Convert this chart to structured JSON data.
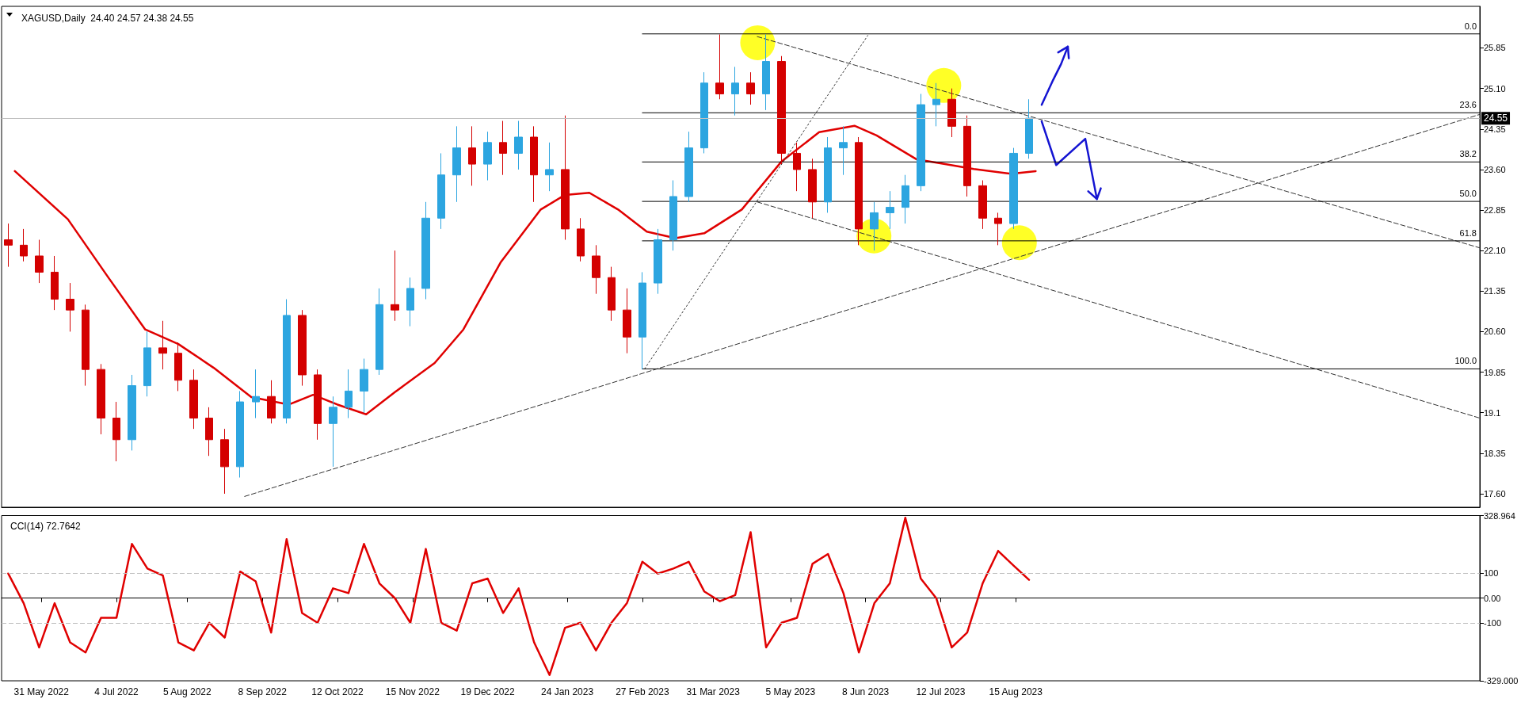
{
  "chart_data": [
    {
      "type": "candlestick",
      "title": "XAGUSD,Daily  24.40 24.57 24.38 24.55",
      "xlim": [
        "2022-05-13",
        "2024-03-12"
      ],
      "ylim": [
        17.35,
        26.62
      ],
      "yticks": [
        {
          "value": 17.6,
          "label": "17.60"
        },
        18.35,
        19.1,
        {
          "value": 19.85,
          "label": "19.85"
        },
        {
          "value": 20.6,
          "label": "20.60"
        },
        21.35,
        {
          "value": 22.1,
          "label": "22.10"
        },
        22.85,
        {
          "value": 23.6,
          "label": "23.60"
        },
        24.35,
        {
          "value": 25.1,
          "label": "25.10"
        },
        25.85
      ],
      "tick_labels": "y",
      "marker": "none",
      "ref_lines": [
        {
          "axis": "y",
          "value": 24.55,
          "label": "24.55",
          "color": "#c0c0c0"
        }
      ],
      "series": [
        {
          "colors": [
            "#d40000",
            "#d40000",
            "#d40000",
            "#d40000",
            "#d40000",
            "#d40000",
            "#d40000",
            "#d40000",
            "#2ca5e0",
            "#2ca5e0",
            "#d40000",
            "#d40000",
            "#d40000",
            "#d40000",
            "#d40000",
            "#2ca5e0",
            "#2ca5e0",
            "#d40000",
            "#2ca5e0",
            "#d40000",
            "#d40000",
            "#2ca5e0",
            "#2ca5e0",
            "#2ca5e0",
            "#2ca5e0",
            "#d40000",
            "#2ca5e0",
            "#2ca5e0",
            "#2ca5e0",
            "#2ca5e0",
            "#d40000",
            "#2ca5e0",
            "#d40000",
            "#2ca5e0",
            "#d40000",
            "#2ca5e0",
            "#d40000",
            "#d40000",
            "#d40000",
            "#d40000",
            "#d40000",
            "#2ca5e0",
            "#2ca5e0",
            "#2ca5e0",
            "#2ca5e0",
            "#2ca5e0",
            "#d40000",
            "#2ca5e0",
            "#d40000",
            "#2ca5e0",
            "#d40000",
            "#d40000",
            "#d40000",
            "#2ca5e0",
            "#2ca5e0",
            "#d40000",
            "#2ca5e0",
            "#2ca5e0",
            "#2ca5e0",
            "#2ca5e0",
            "#2ca5e0",
            "#d40000",
            "#d40000",
            "#d40000",
            "#d40000",
            "#2ca5e0",
            "#2ca5e0"
          ],
          "x": [
            "2022-05-16",
            "2022-05-23",
            "2022-05-30",
            "2022-06-06",
            "2022-06-13",
            "2022-06-20",
            "2022-06-27",
            "2022-07-04",
            "2022-07-11",
            "2022-07-18",
            "2022-07-25",
            "2022-08-01",
            "2022-08-08",
            "2022-08-15",
            "2022-08-22",
            "2022-08-29",
            "2022-09-05",
            "2022-09-12",
            "2022-09-19",
            "2022-09-26",
            "2022-10-03",
            "2022-10-10",
            "2022-10-17",
            "2022-10-24",
            "2022-10-31",
            "2022-11-07",
            "2022-11-14",
            "2022-11-21",
            "2022-11-28",
            "2022-12-05",
            "2022-12-12",
            "2022-12-19",
            "2022-12-26",
            "2023-01-02",
            "2023-01-09",
            "2023-01-16",
            "2023-01-23",
            "2023-01-30",
            "2023-02-06",
            "2023-02-13",
            "2023-02-20",
            "2023-02-27",
            "2023-03-06",
            "2023-03-13",
            "2023-03-20",
            "2023-03-27",
            "2023-04-03",
            "2023-04-10",
            "2023-04-17",
            "2023-04-24",
            "2023-05-01",
            "2023-05-08",
            "2023-05-15",
            "2023-05-22",
            "2023-05-29",
            "2023-06-05",
            "2023-06-12",
            "2023-06-19",
            "2023-06-26",
            "2023-07-03",
            "2023-07-10",
            "2023-07-17",
            "2023-07-24",
            "2023-07-31",
            "2023-08-07",
            "2023-08-14",
            "2023-08-21"
          ],
          "ohlc": [
            [
              22.3,
              22.6,
              21.8,
              22.2
            ],
            [
              22.2,
              22.5,
              21.9,
              22.0
            ],
            [
              22.0,
              22.3,
              21.5,
              21.7
            ],
            [
              21.7,
              22.0,
              21.0,
              21.2
            ],
            [
              21.2,
              21.5,
              20.6,
              21.0
            ],
            [
              21.0,
              21.1,
              19.6,
              19.9
            ],
            [
              19.9,
              20.0,
              18.7,
              19.0
            ],
            [
              19.0,
              19.3,
              18.2,
              18.6
            ],
            [
              18.6,
              19.8,
              18.4,
              19.6
            ],
            [
              19.6,
              20.6,
              19.4,
              20.3
            ],
            [
              20.3,
              20.8,
              19.9,
              20.2
            ],
            [
              20.2,
              20.4,
              19.5,
              19.7
            ],
            [
              19.7,
              19.9,
              18.8,
              19.0
            ],
            [
              19.0,
              19.2,
              18.3,
              18.6
            ],
            [
              18.6,
              18.8,
              17.6,
              18.1
            ],
            [
              18.1,
              19.5,
              17.9,
              19.3
            ],
            [
              19.3,
              19.9,
              19.0,
              19.4
            ],
            [
              19.4,
              19.7,
              18.9,
              19.0
            ],
            [
              19.0,
              21.2,
              18.9,
              20.9
            ],
            [
              20.9,
              21.0,
              19.6,
              19.8
            ],
            [
              19.8,
              19.9,
              18.6,
              18.9
            ],
            [
              18.9,
              19.4,
              18.1,
              19.2
            ],
            [
              19.2,
              19.9,
              19.0,
              19.5
            ],
            [
              19.5,
              20.1,
              19.1,
              19.9
            ],
            [
              19.9,
              21.4,
              19.8,
              21.1
            ],
            [
              21.1,
              22.1,
              20.8,
              21.0
            ],
            [
              21.0,
              21.6,
              20.7,
              21.4
            ],
            [
              21.4,
              23.0,
              21.2,
              22.7
            ],
            [
              22.7,
              23.9,
              22.5,
              23.5
            ],
            [
              23.5,
              24.4,
              23.0,
              24.0
            ],
            [
              24.0,
              24.4,
              23.3,
              23.7
            ],
            [
              23.7,
              24.3,
              23.4,
              24.1
            ],
            [
              24.1,
              24.5,
              23.5,
              23.9
            ],
            [
              23.9,
              24.5,
              23.6,
              24.2
            ],
            [
              24.2,
              24.4,
              23.0,
              23.5
            ],
            [
              23.5,
              24.1,
              23.2,
              23.6
            ],
            [
              23.6,
              24.6,
              22.3,
              22.5
            ],
            [
              22.5,
              22.7,
              21.9,
              22.0
            ],
            [
              22.0,
              22.2,
              21.3,
              21.6
            ],
            [
              21.6,
              21.8,
              20.8,
              21.0
            ],
            [
              21.0,
              21.4,
              20.2,
              20.5
            ],
            [
              20.5,
              21.7,
              19.9,
              21.5
            ],
            [
              21.5,
              22.5,
              21.3,
              22.3
            ],
            [
              22.3,
              23.4,
              22.1,
              23.1
            ],
            [
              23.1,
              24.3,
              23.0,
              24.0
            ],
            [
              24.0,
              25.4,
              23.9,
              25.2
            ],
            [
              25.2,
              26.1,
              24.9,
              25.0
            ],
            [
              25.0,
              25.5,
              24.6,
              25.2
            ],
            [
              25.2,
              25.4,
              24.8,
              25.0
            ],
            [
              25.0,
              26.1,
              24.7,
              25.6
            ],
            [
              25.6,
              25.7,
              23.7,
              23.9
            ],
            [
              23.9,
              24.1,
              23.2,
              23.6
            ],
            [
              23.6,
              23.8,
              22.7,
              23.0
            ],
            [
              23.0,
              24.2,
              22.8,
              24.0
            ],
            [
              24.0,
              24.4,
              23.5,
              24.1
            ],
            [
              24.1,
              24.2,
              22.2,
              22.5
            ],
            [
              22.5,
              23.0,
              22.1,
              22.8
            ],
            [
              22.8,
              23.2,
              22.5,
              22.9
            ],
            [
              22.9,
              23.5,
              22.6,
              23.3
            ],
            [
              23.3,
              25.0,
              23.2,
              24.8
            ],
            [
              24.8,
              25.2,
              24.4,
              24.9
            ],
            [
              24.9,
              25.1,
              24.2,
              24.4
            ],
            [
              24.4,
              24.6,
              23.1,
              23.3
            ],
            [
              23.3,
              23.4,
              22.5,
              22.7
            ],
            [
              22.7,
              22.8,
              22.2,
              22.6
            ],
            [
              22.6,
              24.0,
              22.5,
              23.9
            ],
            [
              23.9,
              24.9,
              23.8,
              24.55
            ]
          ]
        },
        {
          "type": "line",
          "color": "#e00000",
          "line_style": "solid",
          "x": [
            "2022-05-19",
            "2022-06-12",
            "2022-06-30",
            "2022-07-17",
            "2022-08-01",
            "2022-08-17",
            "2022-09-03",
            "2022-09-20",
            "2022-10-01",
            "2022-10-12",
            "2022-10-25",
            "2022-11-07",
            "2022-11-25",
            "2022-12-08",
            "2022-12-25",
            "2023-01-12",
            "2023-01-23",
            "2023-02-03",
            "2023-02-16",
            "2023-03-01",
            "2023-03-14",
            "2023-03-27",
            "2023-04-13",
            "2023-05-01",
            "2023-05-18",
            "2023-06-03",
            "2023-06-13",
            "2023-07-01",
            "2023-07-14",
            "2023-07-27",
            "2023-08-13",
            "2023-08-24"
          ],
          "values": [
            23.57,
            22.68,
            21.62,
            20.64,
            20.37,
            19.93,
            19.39,
            19.25,
            19.43,
            19.25,
            19.07,
            19.48,
            20.02,
            20.64,
            21.89,
            22.86,
            23.13,
            23.17,
            22.86,
            22.45,
            22.33,
            22.42,
            22.86,
            23.75,
            24.29,
            24.41,
            24.23,
            23.79,
            23.7,
            23.61,
            23.52,
            23.57
          ]
        },
        {
          "type": "line",
          "color": "#333333",
          "line_style": "dashed",
          "x": [
            "2022-08-31",
            "2024-03-12"
          ],
          "values": [
            17.55,
            24.62
          ]
        },
        {
          "type": "line",
          "color": "#333333",
          "line_style": "dotted",
          "x": [
            "2023-02-28",
            "2023-06-09"
          ],
          "values": [
            19.91,
            26.08
          ]
        },
        {
          "type": "line",
          "color": "#333333",
          "line_style": "dashed",
          "x": [
            "2023-04-20",
            "2024-03-12"
          ],
          "values": [
            26.06,
            22.15
          ]
        },
        {
          "type": "line",
          "color": "#333333",
          "line_style": "dashed",
          "x": [
            "2023-04-20",
            "2024-03-12"
          ],
          "values": [
            23.0,
            19.0
          ]
        },
        {
          "type": "line",
          "name": "0.0",
          "color": "#000000",
          "line_style": "solid",
          "x": [
            "2023-02-27",
            "2024-03-12"
          ],
          "values": [
            26.11,
            26.11
          ]
        },
        {
          "type": "line",
          "name": "23.6",
          "color": "#000000",
          "line_style": "solid",
          "x": [
            "2023-02-27",
            "2024-03-12"
          ],
          "values": [
            24.65,
            24.65
          ]
        },
        {
          "type": "line",
          "name": "38.2",
          "color": "#000000",
          "line_style": "solid",
          "x": [
            "2023-02-27",
            "2024-03-12"
          ],
          "values": [
            23.74,
            23.74
          ]
        },
        {
          "type": "line",
          "name": "50.0",
          "color": "#000000",
          "line_style": "solid",
          "x": [
            "2023-02-27",
            "2024-03-12"
          ],
          "values": [
            23.01,
            23.01
          ]
        },
        {
          "type": "line",
          "name": "61.8",
          "color": "#000000",
          "line_style": "solid",
          "x": [
            "2023-02-27",
            "2024-03-12"
          ],
          "values": [
            22.28,
            22.28
          ]
        },
        {
          "type": "line",
          "name": "100.0",
          "color": "#000000",
          "line_style": "solid",
          "x": [
            "2023-02-27",
            "2024-03-12"
          ],
          "values": [
            19.91,
            19.91
          ]
        }
      ]
    },
    {
      "type": "line",
      "title": "CCI(14) 72.7642",
      "xlim": [
        "2022-05-13",
        "2024-03-12"
      ],
      "ylim": [
        -329,
        328.964
      ],
      "marker": "none",
      "xticks": [
        {
          "value": "2022-05-31",
          "label": "31 May 2022"
        },
        {
          "value": "2022-07-04",
          "label": "4 Jul 2022"
        },
        {
          "value": "2022-08-05",
          "label": "5 Aug 2022"
        },
        {
          "value": "2022-09-08",
          "label": "8 Sep 2022"
        },
        {
          "value": "2022-10-12",
          "label": "12 Oct 2022"
        },
        {
          "value": "2022-11-15",
          "label": "15 Nov 2022"
        },
        {
          "value": "2022-12-19",
          "label": "19 Dec 2022"
        },
        {
          "value": "2023-01-24",
          "label": "24 Jan 2023"
        },
        {
          "value": "2023-02-27",
          "label": "27 Feb 2023"
        },
        {
          "value": "2023-03-31",
          "label": "31 Mar 2023"
        },
        {
          "value": "2023-05-05",
          "label": "5 May 2023"
        },
        {
          "value": "2023-06-08",
          "label": "8 Jun 2023"
        },
        {
          "value": "2023-07-12",
          "label": "12 Jul 2023"
        },
        {
          "value": "2023-08-15",
          "label": "15 Aug 2023"
        }
      ],
      "yticks": [
        {
          "value": -329,
          "label": "-329.000"
        },
        -100,
        {
          "value": 0,
          "label": "0.00"
        },
        100,
        {
          "value": 328.964,
          "label": "328.964"
        }
      ],
      "ref_lines": [
        {
          "axis": "y",
          "value": 100,
          "color": "#c0c0c0",
          "line_style": "dashed"
        },
        {
          "axis": "y",
          "value": -100,
          "color": "#c0c0c0",
          "line_style": "dashed"
        }
      ],
      "series": [
        {
          "color": "#e00000",
          "line_style": "solid",
          "x": [
            "2022-05-16",
            "2022-05-23",
            "2022-05-30",
            "2022-06-06",
            "2022-06-13",
            "2022-06-20",
            "2022-06-27",
            "2022-07-04",
            "2022-07-11",
            "2022-07-18",
            "2022-07-25",
            "2022-08-01",
            "2022-08-08",
            "2022-08-15",
            "2022-08-22",
            "2022-08-29",
            "2022-09-05",
            "2022-09-12",
            "2022-09-19",
            "2022-09-26",
            "2022-10-03",
            "2022-10-10",
            "2022-10-17",
            "2022-10-24",
            "2022-10-31",
            "2022-11-07",
            "2022-11-14",
            "2022-11-21",
            "2022-11-28",
            "2022-12-05",
            "2022-12-12",
            "2022-12-19",
            "2022-12-26",
            "2023-01-02",
            "2023-01-09",
            "2023-01-16",
            "2023-01-23",
            "2023-01-30",
            "2023-02-06",
            "2023-02-13",
            "2023-02-20",
            "2023-02-27",
            "2023-03-06",
            "2023-03-13",
            "2023-03-20",
            "2023-03-27",
            "2023-04-03",
            "2023-04-10",
            "2023-04-17",
            "2023-04-24",
            "2023-05-01",
            "2023-05-08",
            "2023-05-15",
            "2023-05-22",
            "2023-05-29",
            "2023-06-05",
            "2023-06-12",
            "2023-06-19",
            "2023-06-26",
            "2023-07-03",
            "2023-07-10",
            "2023-07-17",
            "2023-07-24",
            "2023-07-31",
            "2023-08-07",
            "2023-08-14",
            "2023-08-21"
          ],
          "values": [
            98,
            -20,
            -196,
            -20,
            -176,
            -216,
            -78,
            -78,
            216,
            118,
            90,
            -176,
            -208,
            -98,
            -157,
            106,
            67,
            -137,
            235,
            -59,
            -98,
            39,
            20,
            216,
            59,
            0,
            -98,
            196,
            -98,
            -129,
            59,
            78,
            -59,
            39,
            -176,
            -306,
            -118,
            -98,
            -208,
            -98,
            -20,
            145,
            98,
            118,
            145,
            27,
            -12,
            12,
            263,
            -196,
            -98,
            -78,
            137,
            176,
            20,
            -216,
            -20,
            59,
            320,
            78,
            0,
            -196,
            -137,
            59,
            188,
            130,
            73
          ]
        }
      ]
    }
  ]
}
